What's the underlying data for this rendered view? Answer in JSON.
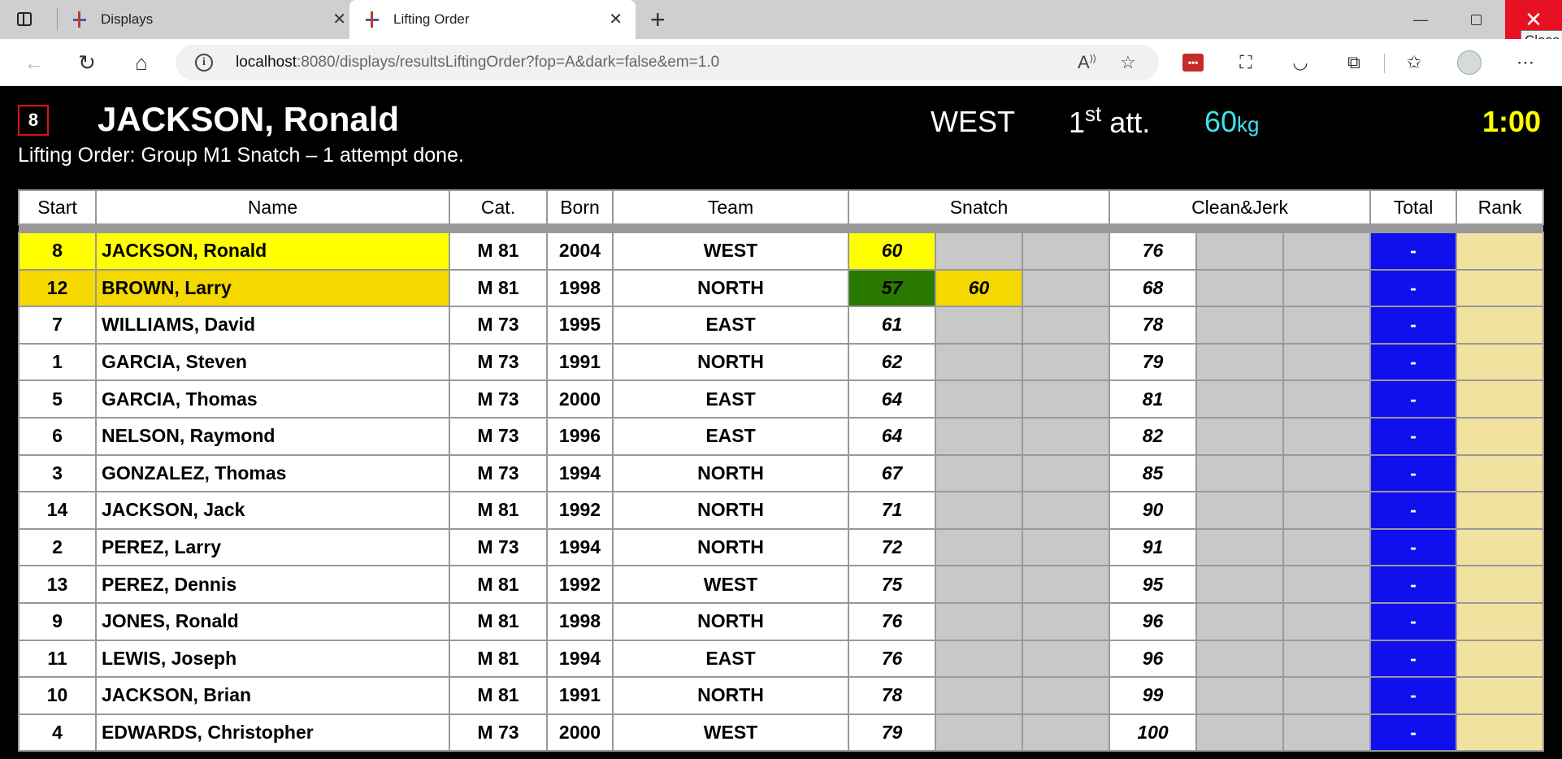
{
  "browser": {
    "tabs": [
      {
        "label": "Displays",
        "active": false
      },
      {
        "label": "Lifting Order",
        "active": true
      }
    ],
    "tooltip": "Close",
    "url_host": "localhost",
    "url_rest": ":8080/displays/resultsLiftingOrder?fop=A&dark=false&em=1.0"
  },
  "current": {
    "start": "8",
    "name": "JACKSON, Ronald",
    "team": "WEST",
    "attempt_num": "1",
    "attempt_sup": "st",
    "attempt_word": "att.",
    "weight": "60",
    "unit": "kg",
    "clock": "1:00"
  },
  "subtitle": "Lifting Order: Group M1 Snatch – 1 attempt done.",
  "headers": {
    "start": "Start",
    "name": "Name",
    "cat": "Cat.",
    "born": "Born",
    "team": "Team",
    "snatch": "Snatch",
    "cj": "Clean&Jerk",
    "total": "Total",
    "rank": "Rank"
  },
  "rows": [
    {
      "start": "8",
      "name": "JACKSON, Ronald",
      "cat": "M 81",
      "born": "2004",
      "team": "WEST",
      "sn1": "60",
      "sn2": "",
      "sn3": "",
      "cj1": "76",
      "cj2": "",
      "cj3": "",
      "total": "-",
      "rank": ""
    },
    {
      "start": "12",
      "name": "BROWN, Larry",
      "cat": "M 81",
      "born": "1998",
      "team": "NORTH",
      "sn1": "57",
      "sn2": "60",
      "sn3": "",
      "cj1": "68",
      "cj2": "",
      "cj3": "",
      "total": "-",
      "rank": ""
    },
    {
      "start": "7",
      "name": "WILLIAMS, David",
      "cat": "M 73",
      "born": "1995",
      "team": "EAST",
      "sn1": "61",
      "sn2": "",
      "sn3": "",
      "cj1": "78",
      "cj2": "",
      "cj3": "",
      "total": "-",
      "rank": ""
    },
    {
      "start": "1",
      "name": "GARCIA, Steven",
      "cat": "M 73",
      "born": "1991",
      "team": "NORTH",
      "sn1": "62",
      "sn2": "",
      "sn3": "",
      "cj1": "79",
      "cj2": "",
      "cj3": "",
      "total": "-",
      "rank": ""
    },
    {
      "start": "5",
      "name": "GARCIA, Thomas",
      "cat": "M 73",
      "born": "2000",
      "team": "EAST",
      "sn1": "64",
      "sn2": "",
      "sn3": "",
      "cj1": "81",
      "cj2": "",
      "cj3": "",
      "total": "-",
      "rank": ""
    },
    {
      "start": "6",
      "name": "NELSON, Raymond",
      "cat": "M 73",
      "born": "1996",
      "team": "EAST",
      "sn1": "64",
      "sn2": "",
      "sn3": "",
      "cj1": "82",
      "cj2": "",
      "cj3": "",
      "total": "-",
      "rank": ""
    },
    {
      "start": "3",
      "name": "GONZALEZ, Thomas",
      "cat": "M 73",
      "born": "1994",
      "team": "NORTH",
      "sn1": "67",
      "sn2": "",
      "sn3": "",
      "cj1": "85",
      "cj2": "",
      "cj3": "",
      "total": "-",
      "rank": ""
    },
    {
      "start": "14",
      "name": "JACKSON, Jack",
      "cat": "M 81",
      "born": "1992",
      "team": "NORTH",
      "sn1": "71",
      "sn2": "",
      "sn3": "",
      "cj1": "90",
      "cj2": "",
      "cj3": "",
      "total": "-",
      "rank": ""
    },
    {
      "start": "2",
      "name": "PEREZ, Larry",
      "cat": "M 73",
      "born": "1994",
      "team": "NORTH",
      "sn1": "72",
      "sn2": "",
      "sn3": "",
      "cj1": "91",
      "cj2": "",
      "cj3": "",
      "total": "-",
      "rank": ""
    },
    {
      "start": "13",
      "name": "PEREZ, Dennis",
      "cat": "M 81",
      "born": "1992",
      "team": "WEST",
      "sn1": "75",
      "sn2": "",
      "sn3": "",
      "cj1": "95",
      "cj2": "",
      "cj3": "",
      "total": "-",
      "rank": ""
    },
    {
      "start": "9",
      "name": "JONES, Ronald",
      "cat": "M 81",
      "born": "1998",
      "team": "NORTH",
      "sn1": "76",
      "sn2": "",
      "sn3": "",
      "cj1": "96",
      "cj2": "",
      "cj3": "",
      "total": "-",
      "rank": ""
    },
    {
      "start": "11",
      "name": "LEWIS, Joseph",
      "cat": "M 81",
      "born": "1994",
      "team": "EAST",
      "sn1": "76",
      "sn2": "",
      "sn3": "",
      "cj1": "96",
      "cj2": "",
      "cj3": "",
      "total": "-",
      "rank": ""
    },
    {
      "start": "10",
      "name": "JACKSON, Brian",
      "cat": "M 81",
      "born": "1991",
      "team": "NORTH",
      "sn1": "78",
      "sn2": "",
      "sn3": "",
      "cj1": "99",
      "cj2": "",
      "cj3": "",
      "total": "-",
      "rank": ""
    },
    {
      "start": "4",
      "name": "EDWARDS, Christopher",
      "cat": "M 73",
      "born": "2000",
      "team": "WEST",
      "sn1": "79",
      "sn2": "",
      "sn3": "",
      "cj1": "100",
      "cj2": "",
      "cj3": "",
      "total": "-",
      "rank": ""
    }
  ],
  "colors": {
    "current_row": "#ffff00",
    "next_row": "#f5d800",
    "good_lift": "#2a7a00",
    "empty_cell": "#c8c8c8",
    "total_cell": "#1010ee",
    "rank_cell": "#f2e2a0",
    "clock": "#ffff00",
    "weight": "#40e0f0"
  }
}
